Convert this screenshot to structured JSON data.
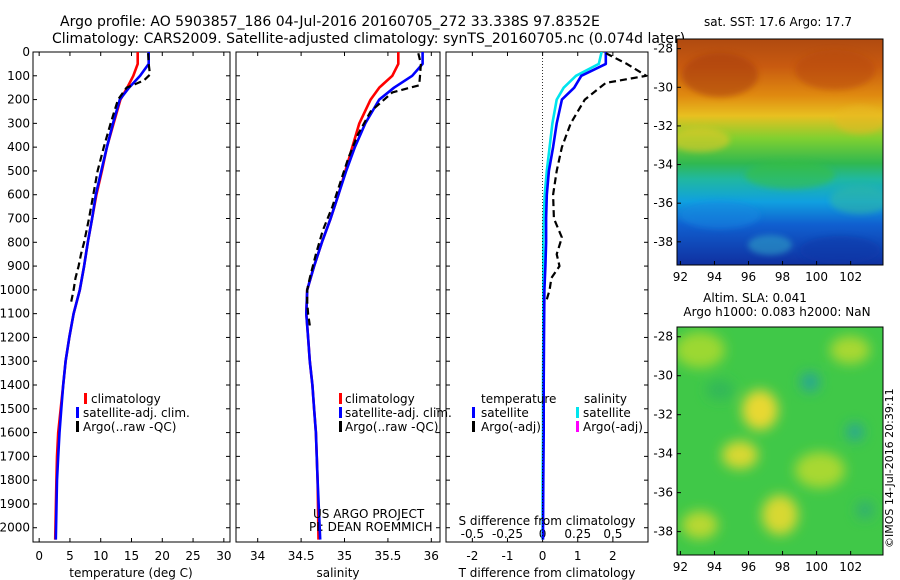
{
  "header": {
    "line1": "Argo profile: AO 5903857_186 04-Jul-2016 20160705_272 33.338S 97.8352E",
    "line2": "Climatology: CARS2009. Satellite-adjusted climatology: synTS_20160705.nc (0.074d later)"
  },
  "footer": {
    "project": "US ARGO PROJECT",
    "pi": "PI: DEAN ROEMMICH",
    "imos": "©IMOS 14-Jul-2016 20:39:11"
  },
  "colors": {
    "climatology": "#ff0000",
    "satellite": "#0000ff",
    "argo": "#000000",
    "satellite_salinity": "#00e5ee",
    "argo_salinity": "#ff00ff"
  },
  "chart_data": [
    {
      "type": "line",
      "id": "temperature",
      "xlabel": "temperature (deg C)",
      "ylabel": "",
      "xlim": [
        -1,
        31
      ],
      "ylim": [
        2060,
        0
      ],
      "xticks": [
        0,
        5,
        10,
        15,
        20,
        25,
        30
      ],
      "yticks": [
        0,
        100,
        200,
        300,
        400,
        500,
        600,
        700,
        800,
        900,
        1000,
        1100,
        1200,
        1300,
        1400,
        1500,
        1600,
        1700,
        1800,
        1900,
        2000
      ],
      "legend": [
        "climatology",
        "satellite-adj. clim.",
        "Argo(..raw -QC)"
      ],
      "series": [
        {
          "name": "climatology",
          "style": "solid",
          "color": "#ff0000",
          "x": [
            16.0,
            16.0,
            15.3,
            14.3,
            13.2,
            12.1,
            11.0,
            10.2,
            9.3,
            8.6,
            7.9,
            7.3,
            6.6,
            5.6,
            4.9,
            4.3,
            3.9,
            3.5,
            3.1,
            2.9,
            2.8,
            2.6
          ],
          "y": [
            0,
            50,
            100,
            150,
            200,
            300,
            400,
            500,
            600,
            700,
            800,
            900,
            1000,
            1100,
            1200,
            1300,
            1400,
            1500,
            1600,
            1700,
            1800,
            2050
          ]
        },
        {
          "name": "satellite-adj. clim.",
          "style": "solid",
          "color": "#0000ff",
          "x": [
            17.8,
            17.8,
            16.4,
            14.6,
            13.1,
            12.0,
            11.0,
            10.1,
            9.2,
            8.6,
            7.9,
            7.3,
            6.6,
            5.6,
            4.9,
            4.3,
            3.9,
            3.6,
            3.3,
            3.1,
            2.9,
            2.7
          ],
          "y": [
            0,
            50,
            100,
            150,
            200,
            300,
            400,
            500,
            600,
            700,
            800,
            900,
            1000,
            1100,
            1200,
            1300,
            1400,
            1500,
            1600,
            1700,
            1800,
            2050
          ]
        },
        {
          "name": "Argo(..raw -QC)",
          "style": "dashed",
          "color": "#000000",
          "x": [
            17.7,
            17.8,
            18.0,
            17.0,
            14.2,
            12.8,
            11.6,
            10.5,
            9.5,
            8.8,
            8.1,
            7.3,
            6.8,
            6.4,
            5.9,
            5.6,
            5.2
          ],
          "y": [
            5,
            50,
            95,
            120,
            150,
            200,
            300,
            400,
            500,
            600,
            700,
            800,
            850,
            900,
            950,
            1000,
            1050
          ]
        }
      ]
    },
    {
      "type": "line",
      "id": "salinity",
      "xlabel": "salinity",
      "ylabel": "",
      "xlim": [
        33.75,
        36.1
      ],
      "ylim": [
        2060,
        0
      ],
      "xticks": [
        34,
        34.5,
        35,
        35.5,
        36
      ],
      "legend": [
        "climatology",
        "satellite-adj. clim.",
        "Argo(..raw -QC)"
      ],
      "series": [
        {
          "name": "climatology",
          "style": "solid",
          "color": "#ff0000",
          "x": [
            35.62,
            35.62,
            35.55,
            35.4,
            35.3,
            35.17,
            35.09,
            35.01,
            34.93,
            34.84,
            34.74,
            34.65,
            34.57,
            34.56,
            34.58,
            34.6,
            34.63,
            34.65,
            34.67,
            34.69,
            34.7
          ],
          "y": [
            0,
            50,
            100,
            150,
            200,
            300,
            400,
            500,
            600,
            700,
            800,
            900,
            1000,
            1100,
            1200,
            1300,
            1400,
            1500,
            1600,
            1800,
            2050
          ]
        },
        {
          "name": "satellite-adj. clim.",
          "style": "solid",
          "color": "#0000ff",
          "x": [
            35.9,
            35.9,
            35.78,
            35.57,
            35.4,
            35.24,
            35.12,
            35.02,
            34.93,
            34.84,
            34.74,
            34.65,
            34.57,
            34.56,
            34.58,
            34.6,
            34.63,
            34.65,
            34.67,
            34.69,
            34.72
          ],
          "y": [
            0,
            50,
            100,
            150,
            200,
            300,
            400,
            500,
            600,
            700,
            800,
            900,
            1000,
            1100,
            1200,
            1300,
            1400,
            1500,
            1600,
            1800,
            2050
          ]
        },
        {
          "name": "Argo(..raw -QC)",
          "style": "dashed",
          "color": "#000000",
          "x": [
            35.85,
            35.88,
            35.87,
            35.86,
            35.55,
            35.3,
            35.15,
            35.04,
            34.95,
            34.86,
            34.75,
            34.67,
            34.6,
            34.57,
            34.57,
            34.58,
            34.6
          ],
          "y": [
            5,
            50,
            100,
            140,
            170,
            250,
            350,
            450,
            550,
            650,
            750,
            850,
            950,
            1000,
            1050,
            1100,
            1150
          ]
        }
      ]
    },
    {
      "type": "line",
      "id": "difference",
      "xlabel": "T difference from climatology",
      "xlabel_top": "S difference from climatology",
      "xlim": [
        -2.75,
        3.0
      ],
      "ylim": [
        2060,
        0
      ],
      "xticks": [
        -2,
        -1,
        0,
        1,
        2
      ],
      "xticks_s": [
        -0.5,
        -0.25,
        0,
        0.25,
        0.5
      ],
      "legend_temperature_title": "temperature",
      "legend_salinity_title": "salinity",
      "legend": [
        "satellite",
        "Argo(-adj)",
        "satellite",
        "Argo(-adj)"
      ],
      "series": [
        {
          "name": "satellite",
          "group": "salinity",
          "style": "solid",
          "color": "#00e5ee",
          "x": [
            1.68,
            1.6,
            0.95,
            0.6,
            0.4,
            0.28,
            0.2,
            0.12,
            0.06,
            0.03,
            0.02,
            0.02,
            0.02,
            0.02,
            0.01,
            0.01,
            0.0,
            0.0
          ],
          "y": [
            0,
            50,
            100,
            150,
            200,
            300,
            400,
            500,
            600,
            700,
            800,
            900,
            1000,
            1200,
            1400,
            1600,
            1800,
            2050
          ]
        },
        {
          "name": "satellite",
          "group": "temperature",
          "style": "solid",
          "color": "#0000ff",
          "x": [
            1.8,
            1.8,
            1.1,
            0.9,
            0.55,
            0.4,
            0.3,
            0.18,
            0.12,
            0.1,
            0.1,
            0.08,
            0.05,
            0.04,
            0.03,
            0.03,
            0.02,
            0.01
          ],
          "y": [
            0,
            50,
            100,
            150,
            200,
            300,
            400,
            500,
            600,
            700,
            800,
            900,
            1000,
            1200,
            1400,
            1600,
            1800,
            2050
          ]
        },
        {
          "name": "Argo(-adj)",
          "group": "temperature",
          "style": "dashed",
          "color": "#000000",
          "x": [
            1.8,
            2.4,
            2.95,
            1.8,
            1.2,
            0.8,
            0.55,
            0.4,
            0.3,
            0.32,
            0.55,
            0.4,
            0.48,
            0.25,
            0.2,
            0.1
          ],
          "y": [
            5,
            50,
            100,
            130,
            200,
            300,
            400,
            500,
            600,
            700,
            780,
            850,
            900,
            950,
            1000,
            1050
          ]
        }
      ]
    },
    {
      "type": "heatmap",
      "id": "sst-map",
      "title": "sat. SST: 17.6  Argo: 17.7",
      "xlim": [
        91.8,
        103.9
      ],
      "ylim": [
        -39.2,
        -27.5
      ],
      "xticks": [
        92,
        94,
        96,
        98,
        100,
        102
      ],
      "yticks": [
        -28,
        -30,
        -32,
        -34,
        -36,
        -38
      ]
    },
    {
      "type": "heatmap",
      "id": "sla-map",
      "title": "Altim. SLA: 0.041",
      "subtitle": "Argo h1000: 0.083 h2000: NaN",
      "xlim": [
        91.8,
        103.9
      ],
      "ylim": [
        -39.2,
        -27.5
      ],
      "xticks": [
        92,
        94,
        96,
        98,
        100,
        102
      ],
      "yticks": [
        -28,
        -30,
        -32,
        -34,
        -36,
        -38
      ]
    }
  ]
}
